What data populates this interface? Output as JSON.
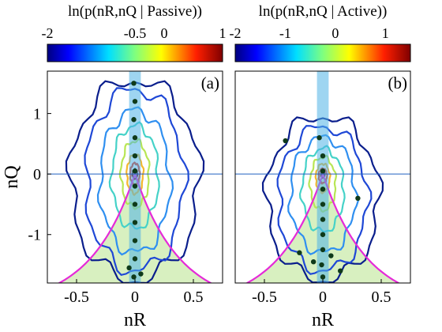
{
  "chart_data": [
    {
      "type": "heatmap",
      "panel_label": "(a)",
      "colorbar": {
        "title": "ln(p(nR,nQ | Passive))",
        "range": [
          -2,
          1
        ],
        "ticks": [
          {
            "value": -2,
            "label": "-2"
          },
          {
            "value": -0.5,
            "label": "-0.5"
          },
          {
            "value": 0,
            "label": "0"
          },
          {
            "value": 1,
            "label": "1"
          }
        ]
      },
      "xlabel": "nR",
      "ylabel": "nQ",
      "xlim": [
        -0.75,
        0.75
      ],
      "ylim": [
        -1.8,
        1.7
      ],
      "xticks": [
        {
          "value": -0.5,
          "label": "-0.5"
        },
        {
          "value": 0,
          "label": "0"
        },
        {
          "value": 0.5,
          "label": "0.5"
        }
      ],
      "yticks": [
        {
          "value": 1,
          "label": "1"
        },
        {
          "value": 0,
          "label": "0"
        },
        {
          "value": -1,
          "label": "-1"
        }
      ],
      "peak": [
        0.0,
        0.0
      ],
      "shaded_band_nR": [
        -0.05,
        0.05
      ],
      "boundary_curve_note": "magenta V-shaped curve meeting at origin, shaded region below",
      "contour_levels": [
        {
          "value": -2.0,
          "color": "#0a1e8c",
          "x_halfwidth": 0.55,
          "y_top": 1.55,
          "y_bottom": -1.75
        },
        {
          "value": -1.6,
          "color": "#1f48d6",
          "x_halfwidth": 0.42,
          "y_top": 1.4,
          "y_bottom": -1.6
        },
        {
          "value": -1.2,
          "color": "#2f8ff0",
          "x_halfwidth": 0.3,
          "y_top": 1.05,
          "y_bottom": -1.3
        },
        {
          "value": -0.8,
          "color": "#45d2c8",
          "x_halfwidth": 0.2,
          "y_top": 0.8,
          "y_bottom": -0.9
        },
        {
          "value": -0.4,
          "color": "#b8e654",
          "x_halfwidth": 0.12,
          "y_top": 0.55,
          "y_bottom": -0.55
        },
        {
          "value": 0.0,
          "color": "#f5b82d",
          "x_halfwidth": 0.07,
          "y_top": 0.32,
          "y_bottom": -0.32
        },
        {
          "value": 0.5,
          "color": "#e8331a",
          "x_halfwidth": 0.04,
          "y_top": 0.18,
          "y_bottom": -0.18
        },
        {
          "value": 0.9,
          "color": "#7a0f10",
          "x_halfwidth": 0.02,
          "y_top": 0.08,
          "y_bottom": -0.08
        }
      ],
      "points": [
        {
          "x": -0.01,
          "y": 1.5
        },
        {
          "x": 0.0,
          "y": 1.2
        },
        {
          "x": -0.01,
          "y": 0.9
        },
        {
          "x": 0.0,
          "y": 0.6
        },
        {
          "x": 0.0,
          "y": 0.3
        },
        {
          "x": 0.0,
          "y": 0.05
        },
        {
          "x": 0.0,
          "y": -0.2
        },
        {
          "x": 0.0,
          "y": -0.5
        },
        {
          "x": 0.0,
          "y": -0.8
        },
        {
          "x": 0.0,
          "y": -1.1
        },
        {
          "x": 0.0,
          "y": -1.4
        },
        {
          "x": -0.01,
          "y": -1.7
        },
        {
          "x": -0.05,
          "y": -1.55
        },
        {
          "x": 0.05,
          "y": -1.65
        }
      ]
    },
    {
      "type": "heatmap",
      "panel_label": "(b)",
      "colorbar": {
        "title": "ln(p(nR,nQ | Active))",
        "range": [
          -2,
          1.5
        ],
        "ticks": [
          {
            "value": -2,
            "label": "-2"
          },
          {
            "value": -1,
            "label": "-1"
          },
          {
            "value": 0,
            "label": "0"
          },
          {
            "value": 1,
            "label": "1"
          }
        ]
      },
      "xlabel": "nR",
      "ylabel": "",
      "xlim": [
        -0.75,
        0.75
      ],
      "ylim": [
        -1.8,
        1.7
      ],
      "xticks": [
        {
          "value": -0.5,
          "label": "-0.5"
        },
        {
          "value": 0,
          "label": "0"
        },
        {
          "value": 0.5,
          "label": "0.5"
        }
      ],
      "yticks": [],
      "peak": [
        0.0,
        0.0
      ],
      "shaded_band_nR": [
        -0.05,
        0.05
      ],
      "boundary_curve_note": "magenta V-shaped curve meeting at origin, shaded region below",
      "contour_levels": [
        {
          "value": -2.0,
          "color": "#0a1e8c",
          "x_halfwidth": 0.48,
          "y_top": 0.95,
          "y_bottom": -1.75
        },
        {
          "value": -1.5,
          "color": "#1f48d6",
          "x_halfwidth": 0.38,
          "y_top": 0.78,
          "y_bottom": -1.6
        },
        {
          "value": -1.0,
          "color": "#2f8ff0",
          "x_halfwidth": 0.28,
          "y_top": 0.6,
          "y_bottom": -1.3
        },
        {
          "value": -0.5,
          "color": "#45d2c8",
          "x_halfwidth": 0.18,
          "y_top": 0.42,
          "y_bottom": -0.95
        },
        {
          "value": 0.0,
          "color": "#b8e654",
          "x_halfwidth": 0.11,
          "y_top": 0.28,
          "y_bottom": -0.6
        },
        {
          "value": 0.5,
          "color": "#f5b82d",
          "x_halfwidth": 0.06,
          "y_top": 0.17,
          "y_bottom": -0.3
        },
        {
          "value": 1.0,
          "color": "#e8331a",
          "x_halfwidth": 0.035,
          "y_top": 0.09,
          "y_bottom": -0.15
        },
        {
          "value": 1.4,
          "color": "#7a0f10",
          "x_halfwidth": 0.015,
          "y_top": 0.04,
          "y_bottom": -0.06
        }
      ],
      "points": [
        {
          "x": -0.03,
          "y": 0.6
        },
        {
          "x": 0.0,
          "y": 0.3
        },
        {
          "x": 0.0,
          "y": 0.05
        },
        {
          "x": 0.0,
          "y": -0.25
        },
        {
          "x": 0.0,
          "y": -0.5
        },
        {
          "x": 0.0,
          "y": -0.75
        },
        {
          "x": 0.0,
          "y": -1.0
        },
        {
          "x": 0.0,
          "y": -1.25
        },
        {
          "x": -0.01,
          "y": -1.5
        },
        {
          "x": 0.0,
          "y": -1.7
        },
        {
          "x": 0.07,
          "y": -1.35
        },
        {
          "x": -0.08,
          "y": -1.45
        },
        {
          "x": 0.15,
          "y": -1.6
        },
        {
          "x": -0.2,
          "y": -1.3
        },
        {
          "x": 0.3,
          "y": -0.4
        },
        {
          "x": -0.32,
          "y": 0.55
        }
      ]
    }
  ]
}
